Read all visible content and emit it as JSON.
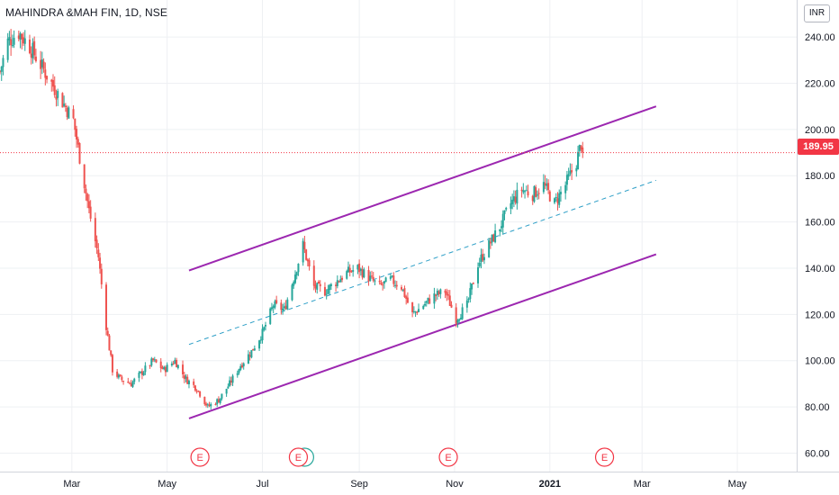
{
  "header": {
    "title": "MAHINDRA &MAH FIN, 1D, NSE",
    "currency": "INR"
  },
  "last_price": {
    "label": "189.95",
    "value": 189.95,
    "color": "#f23645"
  },
  "colors": {
    "up": "#26a69a",
    "down": "#ef5350",
    "channel": "#9c27b0",
    "midline": "#2e9fc7",
    "grid": "#eef0f3",
    "axis_text": "#131722",
    "earnings": "#f23645",
    "dividend": "#26a69a"
  },
  "earnings_markers": [
    {
      "date": "2020-05-22",
      "label": "E"
    },
    {
      "date": "2020-07-24",
      "label": "E"
    },
    {
      "date": "2020-10-28",
      "label": "E"
    },
    {
      "date": "2021-02-05",
      "label": "E"
    }
  ],
  "dividend_markers": [
    {
      "date": "2020-07-28"
    }
  ],
  "chart_data": {
    "type": "candlestick",
    "title": "MAHINDRA &MAH FIN, 1D, NSE",
    "y_axis": {
      "range": [
        52,
        256
      ],
      "ticks": [
        "240.00",
        "220.00",
        "200.00",
        "180.00",
        "160.00",
        "140.00",
        "120.00",
        "100.00",
        "80.00",
        "60.00"
      ],
      "tick_values": [
        240,
        220,
        200,
        180,
        160,
        140,
        120,
        100,
        80,
        60
      ],
      "position": "right"
    },
    "x_axis": {
      "range": [
        "2020-01-15",
        "2021-06-08"
      ],
      "ticks": [
        {
          "date": "2020-03-01",
          "label": "Mar"
        },
        {
          "date": "2020-05-01",
          "label": "May"
        },
        {
          "date": "2020-07-01",
          "label": "Jul"
        },
        {
          "date": "2020-09-01",
          "label": "Sep"
        },
        {
          "date": "2020-11-01",
          "label": "Nov"
        },
        {
          "date": "2021-01-01",
          "label": "2021"
        },
        {
          "date": "2021-03-01",
          "label": "Mar"
        },
        {
          "date": "2021-05-01",
          "label": "May"
        }
      ]
    },
    "grid": true,
    "last_close": 189.95,
    "close_path": [
      [
        "2020-01-15",
        225
      ],
      [
        "2020-01-20",
        238
      ],
      [
        "2020-01-27",
        242
      ],
      [
        "2020-02-03",
        236
      ],
      [
        "2020-02-10",
        228
      ],
      [
        "2020-02-17",
        220
      ],
      [
        "2020-02-24",
        212
      ],
      [
        "2020-03-02",
        204
      ],
      [
        "2020-03-06",
        188
      ],
      [
        "2020-03-12",
        165
      ],
      [
        "2020-03-18",
        145
      ],
      [
        "2020-03-23",
        115
      ],
      [
        "2020-03-27",
        96
      ],
      [
        "2020-04-01",
        92
      ],
      [
        "2020-04-08",
        90
      ],
      [
        "2020-04-15",
        95
      ],
      [
        "2020-04-22",
        100
      ],
      [
        "2020-04-29",
        96
      ],
      [
        "2020-05-06",
        100
      ],
      [
        "2020-05-13",
        92
      ],
      [
        "2020-05-20",
        88
      ],
      [
        "2020-05-27",
        80
      ],
      [
        "2020-06-03",
        83
      ],
      [
        "2020-06-10",
        90
      ],
      [
        "2020-06-17",
        98
      ],
      [
        "2020-06-24",
        104
      ],
      [
        "2020-07-01",
        112
      ],
      [
        "2020-07-08",
        124
      ],
      [
        "2020-07-15",
        122
      ],
      [
        "2020-07-22",
        138
      ],
      [
        "2020-07-27",
        150
      ],
      [
        "2020-08-03",
        132
      ],
      [
        "2020-08-10",
        130
      ],
      [
        "2020-08-17",
        134
      ],
      [
        "2020-08-24",
        138
      ],
      [
        "2020-08-31",
        140
      ],
      [
        "2020-09-07",
        136
      ],
      [
        "2020-09-14",
        132
      ],
      [
        "2020-09-21",
        135
      ],
      [
        "2020-09-28",
        132
      ],
      [
        "2020-10-05",
        120
      ],
      [
        "2020-10-12",
        124
      ],
      [
        "2020-10-19",
        128
      ],
      [
        "2020-10-26",
        130
      ],
      [
        "2020-11-02",
        118
      ],
      [
        "2020-11-09",
        124
      ],
      [
        "2020-11-16",
        142
      ],
      [
        "2020-11-23",
        150
      ],
      [
        "2020-11-30",
        158
      ],
      [
        "2020-12-07",
        168
      ],
      [
        "2020-12-14",
        174
      ],
      [
        "2020-12-21",
        172
      ],
      [
        "2020-12-28",
        176
      ],
      [
        "2021-01-04",
        168
      ],
      [
        "2021-01-11",
        176
      ],
      [
        "2021-01-18",
        186
      ],
      [
        "2021-01-21",
        194
      ],
      [
        "2021-01-22",
        189.95
      ]
    ],
    "channel": {
      "upper": [
        [
          "2020-05-15",
          139
        ],
        [
          "2021-03-10",
          210
        ]
      ],
      "lower": [
        [
          "2020-05-15",
          75
        ],
        [
          "2021-03-10",
          146
        ]
      ],
      "middle": [
        [
          "2020-05-15",
          107
        ],
        [
          "2021-03-10",
          178
        ]
      ],
      "middle_style": "dashed"
    }
  }
}
